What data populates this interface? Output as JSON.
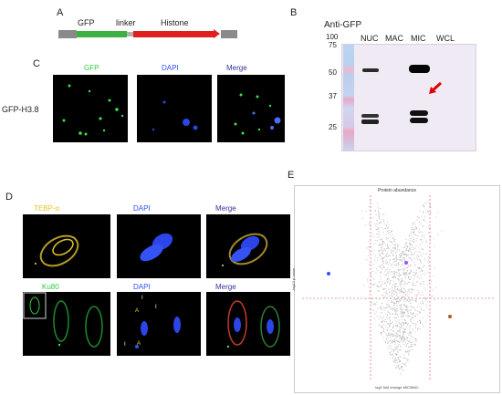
{
  "panels": {
    "A": {
      "label": "A",
      "construct": {
        "gfp": "GFP",
        "linker": "linker",
        "histone": "Histone"
      },
      "colors": {
        "gfp": "#3cb043",
        "histone": "#e02020",
        "ends": "#777777"
      }
    },
    "B": {
      "label": "B",
      "title": "Anti-GFP",
      "lanes": [
        "NUC",
        "MAC",
        "MIC",
        "WCL"
      ],
      "ladder": [
        "100",
        "75",
        "50",
        "37",
        "25"
      ]
    },
    "C": {
      "label": "C",
      "row_label": "GFP-H3.8",
      "channels": [
        "GFP",
        "DAPI",
        "Merge"
      ],
      "channel_colors": {
        "GFP": "#2ecc40",
        "DAPI": "#3050ff",
        "Merge": "#333399"
      }
    },
    "D": {
      "label": "D",
      "rows": [
        {
          "channels": [
            "TEBP-α",
            "DAPI",
            "Merge"
          ]
        },
        {
          "channels": [
            "Ku80",
            "DAPI",
            "Merge"
          ]
        }
      ],
      "channel_colors": {
        "TEBP-α": "#e6c229",
        "Ku80": "#2ecc40",
        "DAPI": "#3050ff",
        "Merge": "#333399"
      },
      "dapi_marks": [
        "I",
        "I",
        "A",
        "I",
        "A"
      ]
    },
    "E": {
      "label": "E",
      "plot_title": "Protein abundance",
      "xlabel": "log2 fold change MIC/MAC",
      "ylabel": "-log10 p-value"
    }
  }
}
